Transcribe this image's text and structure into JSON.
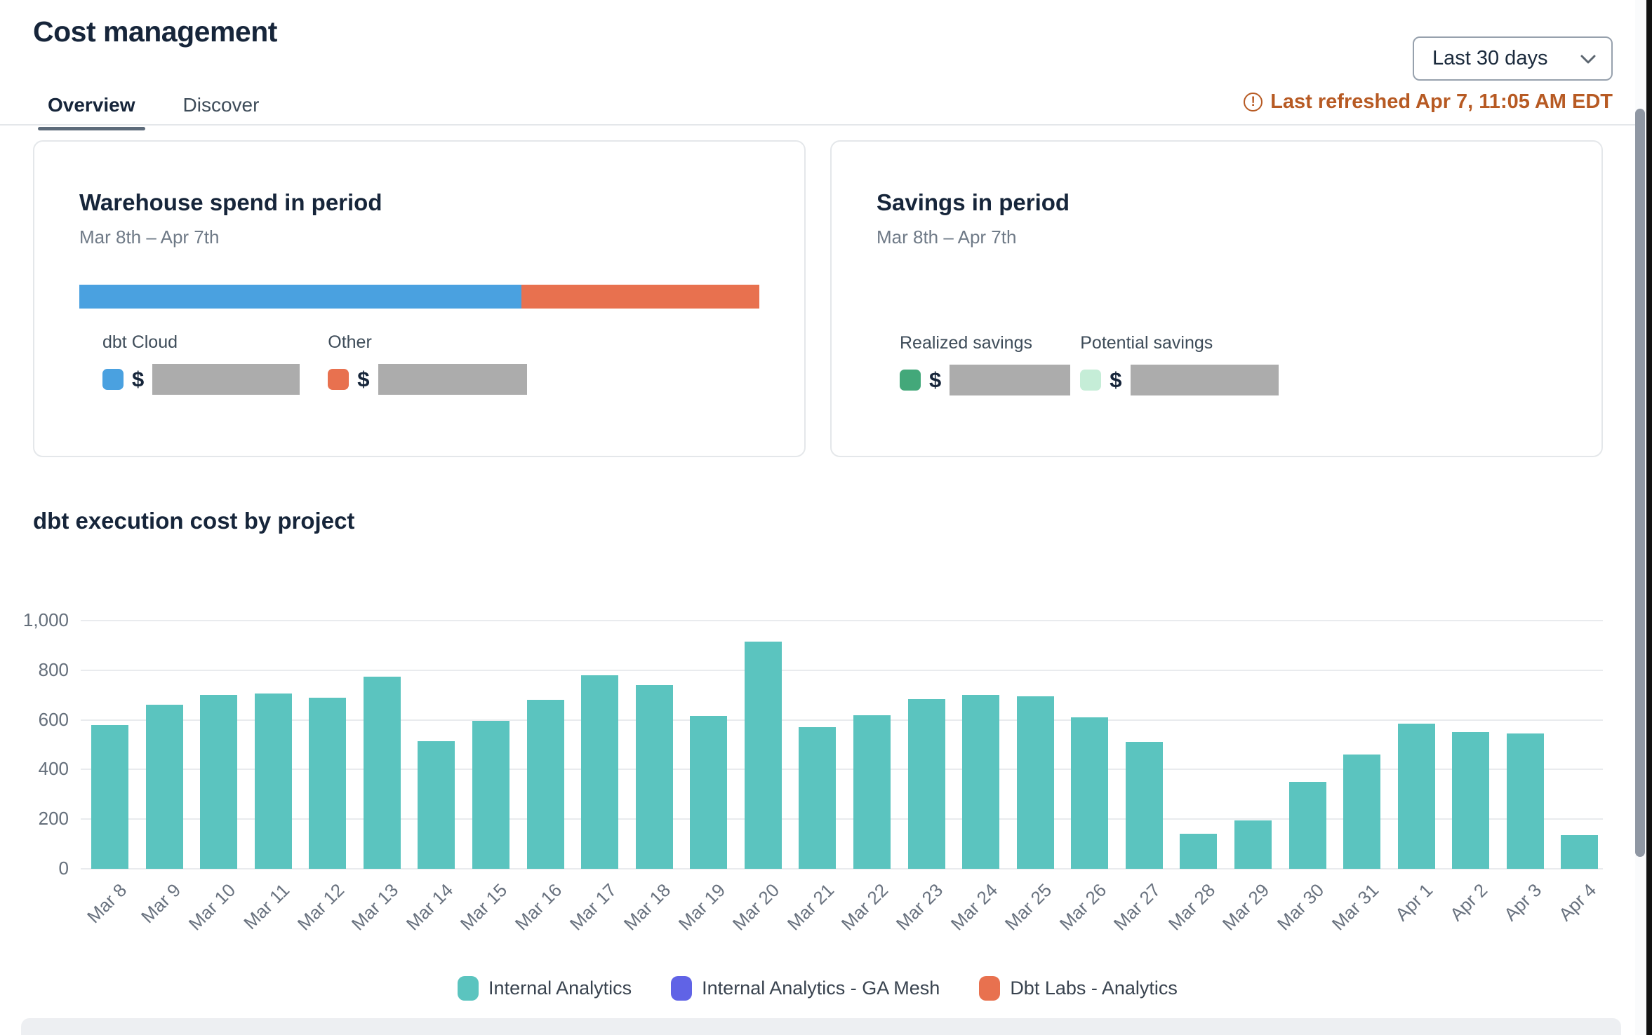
{
  "page": {
    "title": "Cost management"
  },
  "icons": {
    "warning_glyph": "!"
  },
  "controls": {
    "date_range": {
      "value": "Last 30 days"
    },
    "last_refreshed": "Last refreshed Apr 7, 11:05 AM EDT"
  },
  "tabs": [
    {
      "label": "Overview",
      "active": true
    },
    {
      "label": "Discover",
      "active": false
    }
  ],
  "warehouse_card": {
    "title": "Warehouse spend in period",
    "subtitle": "Mar 8th – Apr 7th",
    "bar_segments": [
      {
        "label": "dbt Cloud",
        "color": "#4AA1E0",
        "percent": 65
      },
      {
        "label": "Other",
        "color": "#E8714F",
        "percent": 35
      }
    ],
    "entries": [
      {
        "label": "dbt Cloud",
        "swatch_color": "#4AA1E0",
        "currency": "$",
        "value_hidden": true
      },
      {
        "label": "Other",
        "swatch_color": "#E8714F",
        "currency": "$",
        "value_hidden": true
      }
    ]
  },
  "savings_card": {
    "title": "Savings in period",
    "subtitle": "Mar 8th – Apr 7th",
    "entries": [
      {
        "label": "Realized savings",
        "swatch_color": "#43A87A",
        "currency": "$",
        "value_hidden": true
      },
      {
        "label": "Potential savings",
        "swatch_color": "#C5EDD7",
        "currency": "$",
        "value_hidden": true
      }
    ]
  },
  "chart_section": {
    "title": "dbt execution cost by project"
  },
  "chart_data": {
    "type": "bar",
    "title": "dbt execution cost by project",
    "categories": [
      "Mar 8",
      "Mar 9",
      "Mar 10",
      "Mar 11",
      "Mar 12",
      "Mar 13",
      "Mar 14",
      "Mar 15",
      "Mar 16",
      "Mar 17",
      "Mar 18",
      "Mar 19",
      "Mar 20",
      "Mar 21",
      "Mar 22",
      "Mar 23",
      "Mar 24",
      "Mar 25",
      "Mar 26",
      "Mar 27",
      "Mar 28",
      "Mar 29",
      "Mar 30",
      "Mar 31",
      "Apr 1",
      "Apr 2",
      "Apr 3",
      "Apr 4"
    ],
    "series": [
      {
        "name": "Internal Analytics",
        "color": "#5BC4BF",
        "values": [
          580,
          660,
          700,
          705,
          690,
          775,
          515,
          595,
          680,
          780,
          740,
          615,
          915,
          570,
          620,
          685,
          700,
          695,
          610,
          510,
          140,
          195,
          350,
          460,
          585,
          550,
          545,
          135
        ]
      },
      {
        "name": "Internal Analytics - GA Mesh",
        "color": "#6063E6",
        "values": [
          0,
          0,
          0,
          0,
          0,
          0,
          0,
          0,
          0,
          0,
          0,
          0,
          0,
          0,
          0,
          0,
          0,
          0,
          0,
          0,
          0,
          0,
          0,
          0,
          0,
          0,
          0,
          0
        ]
      },
      {
        "name": "Dbt Labs - Analytics",
        "color": "#E8714F",
        "values": [
          0,
          0,
          0,
          0,
          0,
          0,
          0,
          0,
          0,
          0,
          0,
          0,
          0,
          0,
          0,
          0,
          0,
          0,
          0,
          0,
          0,
          0,
          0,
          0,
          0,
          0,
          0,
          0
        ]
      }
    ],
    "xlabel": "",
    "ylabel": "",
    "ylim": [
      0,
      1000
    ],
    "yticks": [
      {
        "value": 0,
        "label": "0"
      },
      {
        "value": 200,
        "label": "200"
      },
      {
        "value": 400,
        "label": "400"
      },
      {
        "value": 600,
        "label": "600"
      },
      {
        "value": 800,
        "label": "800"
      },
      {
        "value": 1000,
        "label": "1,000"
      }
    ],
    "grid": true,
    "legend_position": "bottom"
  }
}
